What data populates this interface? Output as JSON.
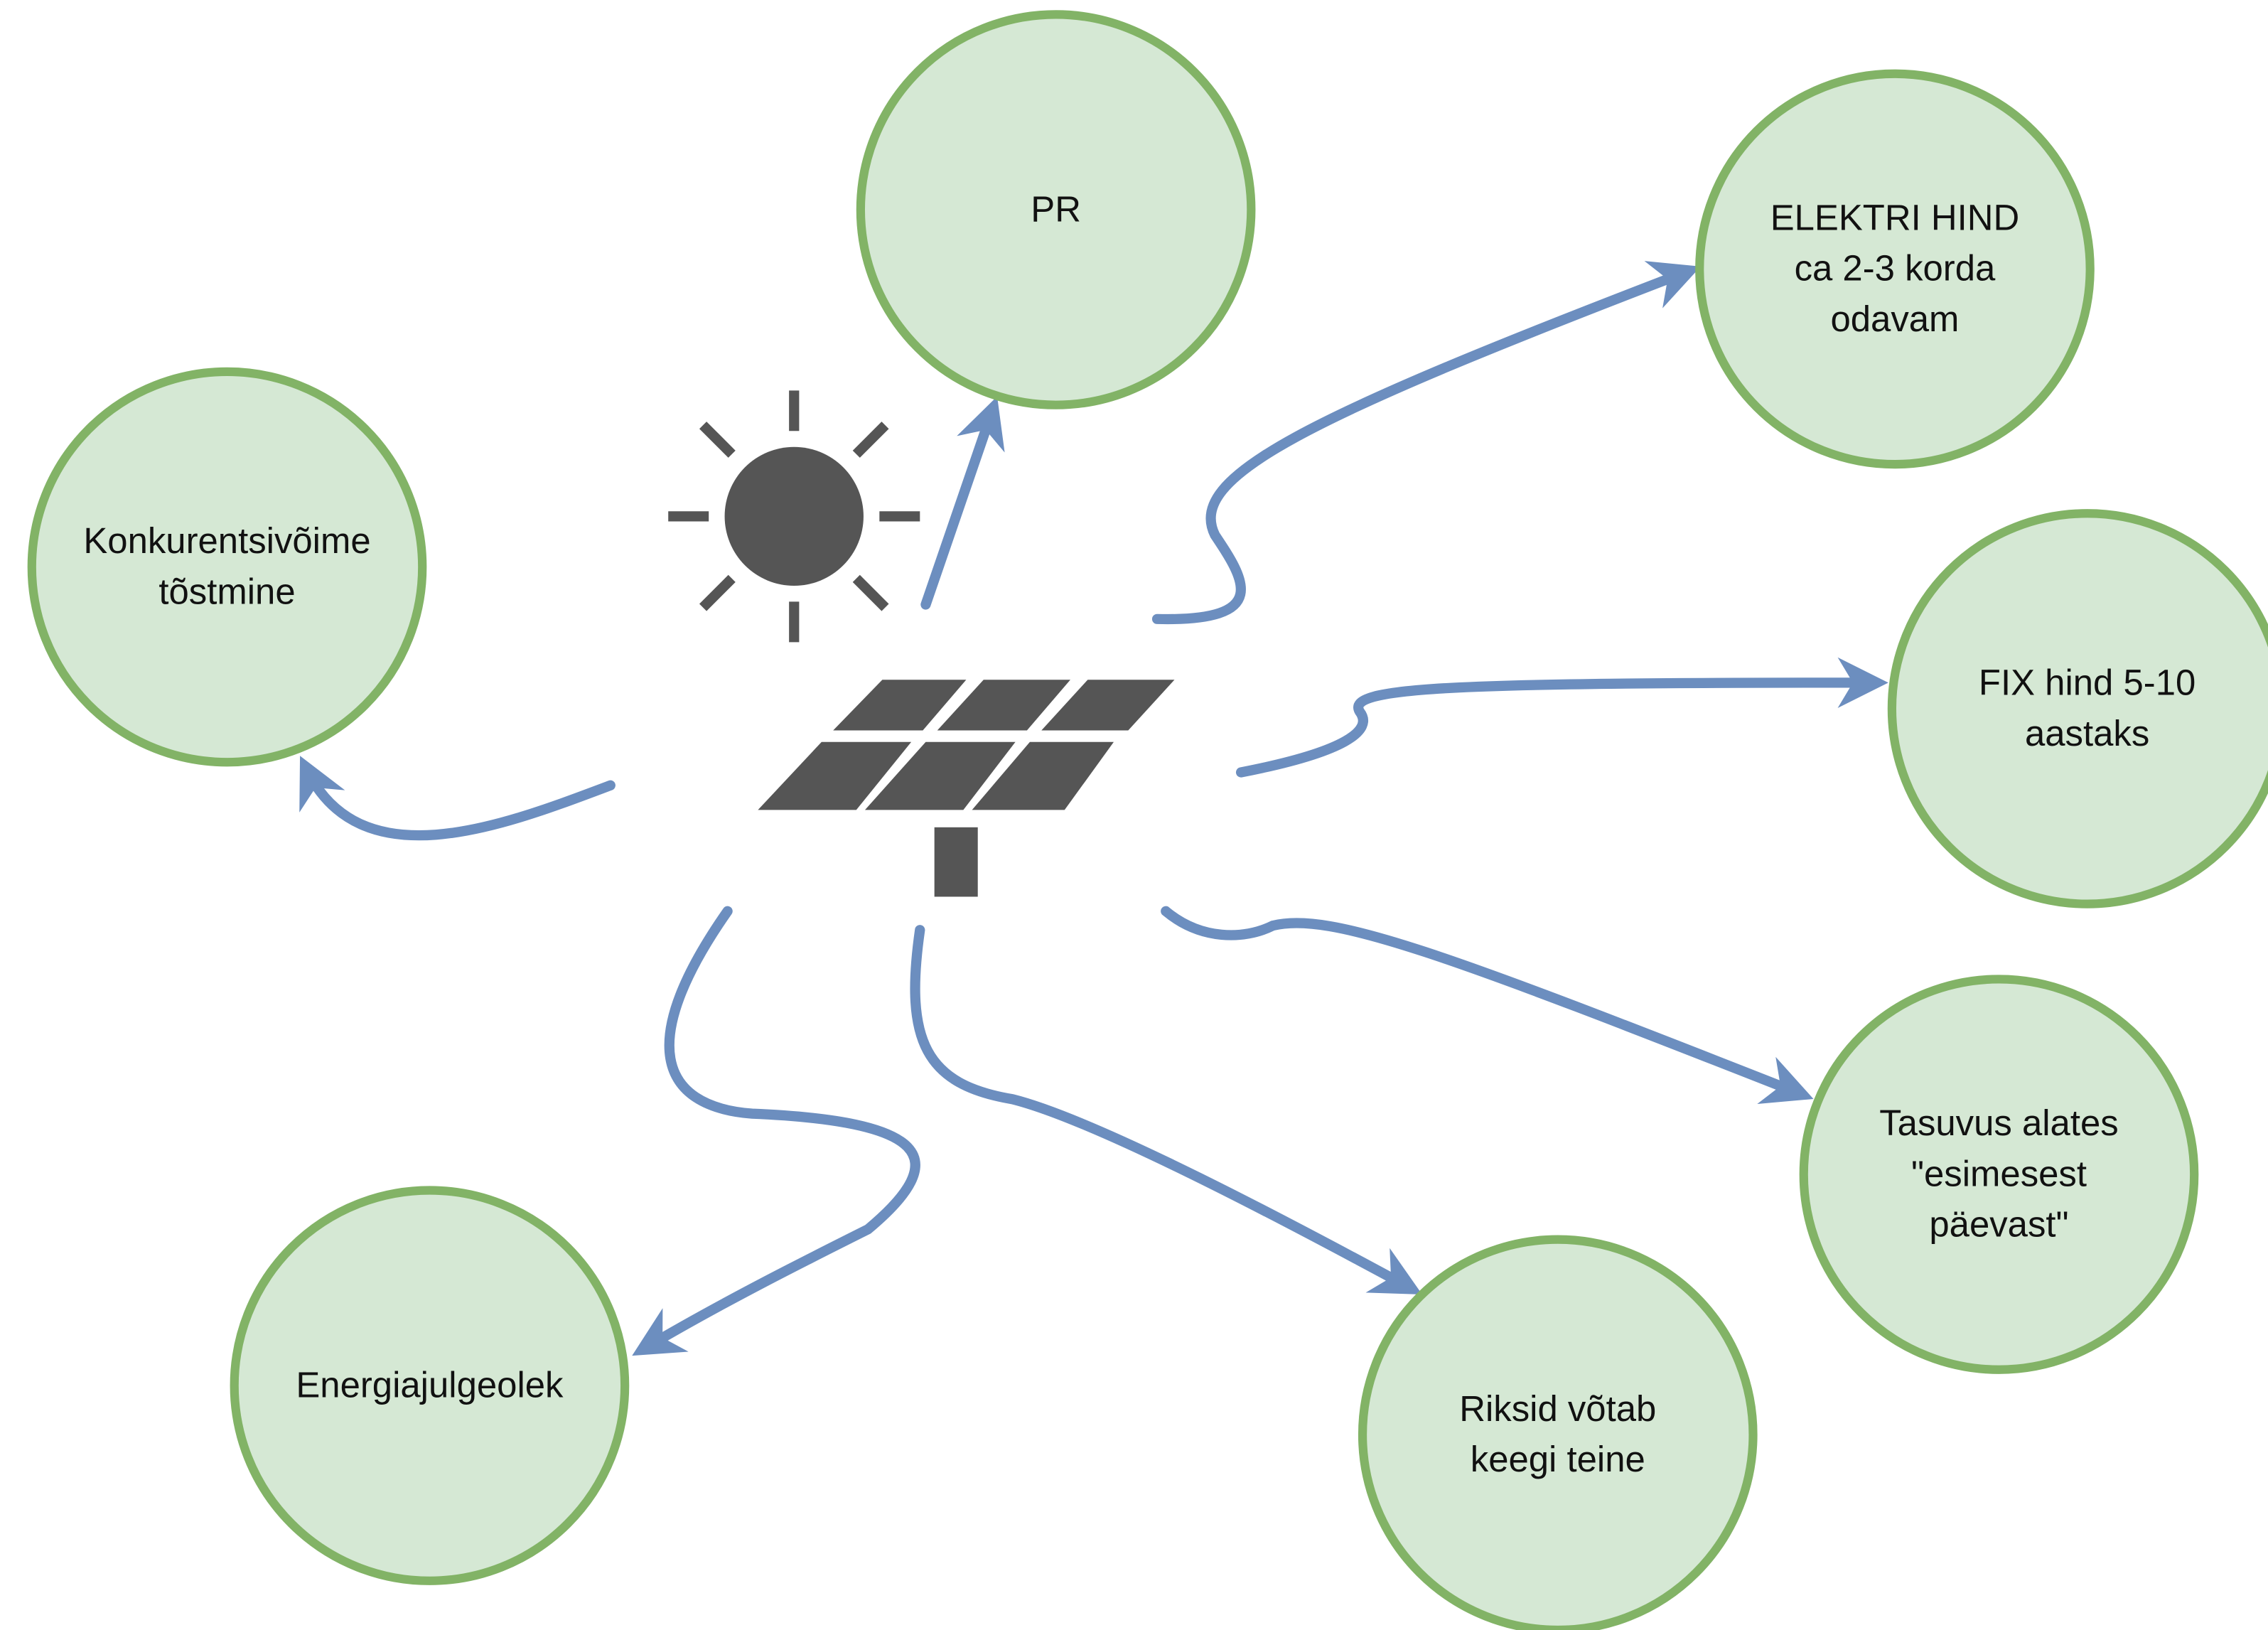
{
  "nodes": [
    {
      "lines": [
        "PR"
      ]
    },
    {
      "lines": [
        "ELEKTRI HIND",
        "ca 2-3 korda",
        "odavam"
      ]
    },
    {
      "lines": [
        "Konkurentsivõime",
        "tõstmine"
      ]
    },
    {
      "lines": [
        "FIX hind 5-10",
        "aastaks"
      ]
    },
    {
      "lines": [
        "Tasuvus alates",
        "\"esimesest",
        "päevast\""
      ]
    },
    {
      "lines": [
        "Riksid võtab",
        "keegi teine"
      ]
    },
    {
      "lines": [
        "Energiajulgeolek"
      ]
    }
  ]
}
